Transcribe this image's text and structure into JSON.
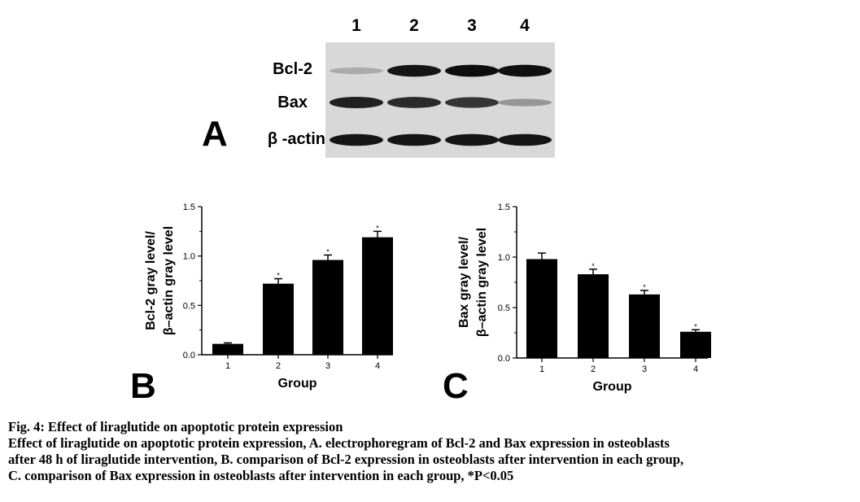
{
  "panel_a": {
    "letter": "A",
    "lanes": [
      "1",
      "2",
      "3",
      "4"
    ],
    "rows": [
      {
        "label": "Bcl-2",
        "intensity": [
          0.25,
          0.95,
          0.98,
          0.97
        ]
      },
      {
        "label": "Bax",
        "intensity": [
          0.9,
          0.85,
          0.8,
          0.35
        ]
      },
      {
        "label": "β -actin",
        "intensity": [
          0.95,
          0.95,
          0.95,
          0.95
        ]
      }
    ]
  },
  "chart_data": [
    {
      "panel": "B",
      "type": "bar",
      "categories": [
        "1",
        "2",
        "3",
        "4"
      ],
      "values": [
        0.11,
        0.72,
        0.96,
        1.19
      ],
      "errors": [
        0.01,
        0.05,
        0.05,
        0.06
      ],
      "significance": [
        "",
        "*",
        "*",
        "*"
      ],
      "xlabel": "Group",
      "ylabel_line1": "Bcl-2 gray level/",
      "ylabel_line2": "β–actin gray level",
      "ylim": [
        0,
        1.5
      ],
      "yticks": [
        "0.0",
        "0.5",
        "1.0",
        "1.5"
      ]
    },
    {
      "panel": "C",
      "type": "bar",
      "categories": [
        "1",
        "2",
        "3",
        "4"
      ],
      "values": [
        0.98,
        0.83,
        0.63,
        0.26
      ],
      "errors": [
        0.06,
        0.05,
        0.04,
        0.02
      ],
      "significance": [
        "",
        "*",
        "*",
        "*"
      ],
      "xlabel": "Group",
      "ylabel_line1": "Bax gray level/",
      "ylabel_line2": "β–actin gray level",
      "ylim": [
        0,
        1.5
      ],
      "yticks": [
        "0.0",
        "0.5",
        "1.0",
        "1.5"
      ]
    }
  ],
  "caption": {
    "title": "Fig. 4: Effect of liraglutide on apoptotic protein expression",
    "line1": "Effect of liraglutide on apoptotic protein expression, A. electrophoregram of Bcl-2 and Bax expression in osteoblasts",
    "line2": "after 48 h of liraglutide intervention, B. comparison of Bcl-2 expression in osteoblasts after intervention in each group,",
    "line3": "C. comparison of Bax expression in osteoblasts after intervention in each group, *P<0.05"
  }
}
